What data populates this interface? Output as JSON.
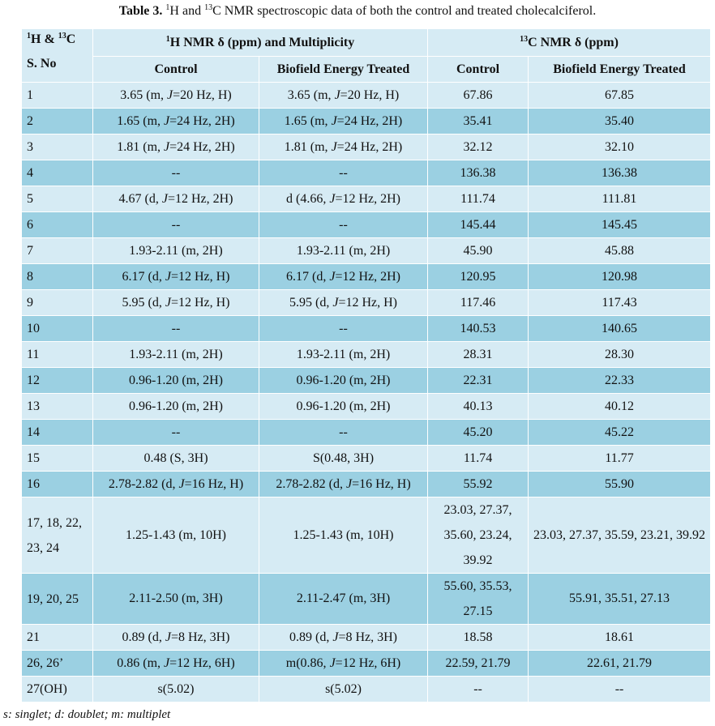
{
  "caption": {
    "label": "Table 3.",
    "text_prefix": "",
    "sup1": "1",
    "mid": "H and ",
    "sup2": "13",
    "rest": "C NMR spectroscopic data of both the control and treated cholecalciferol."
  },
  "header": {
    "corner_sup1": "1",
    "corner_h": "H & ",
    "corner_sup2": "13",
    "corner_c": "C",
    "corner_sno": "S. No",
    "h_group_sup": "1",
    "h_group": "H NMR δ (ppm) and Multiplicity",
    "c_group_sup": "13",
    "c_group": "C NMR δ (ppm)",
    "sub": [
      "Control",
      "Biofield Energy Treated",
      "Control",
      "Biofield Energy Treated"
    ]
  },
  "rows": [
    {
      "no": "1",
      "h_ctrl": "3.65 (m, J=20 Hz, H)",
      "h_trt": "3.65 (m, J=20 Hz, H)",
      "c_ctrl": "67.86",
      "c_trt": "67.85"
    },
    {
      "no": "2",
      "h_ctrl": "1.65 (m, J=24 Hz, 2H)",
      "h_trt": "1.65 (m, J=24 Hz, 2H)",
      "c_ctrl": "35.41",
      "c_trt": "35.40"
    },
    {
      "no": "3",
      "h_ctrl": "1.81 (m, J=24 Hz, 2H)",
      "h_trt": "1.81 (m, J=24 Hz, 2H)",
      "c_ctrl": "32.12",
      "c_trt": "32.10"
    },
    {
      "no": "4",
      "h_ctrl": "--",
      "h_trt": "--",
      "c_ctrl": "136.38",
      "c_trt": "136.38"
    },
    {
      "no": "5",
      "h_ctrl": "4.67 (d, J=12 Hz, 2H)",
      "h_trt": "d (4.66, J=12 Hz, 2H)",
      "c_ctrl": "111.74",
      "c_trt": "111.81"
    },
    {
      "no": "6",
      "h_ctrl": "--",
      "h_trt": "--",
      "c_ctrl": "145.44",
      "c_trt": "145.45"
    },
    {
      "no": "7",
      "h_ctrl": "1.93-2.11 (m, 2H)",
      "h_trt": "1.93-2.11 (m, 2H)",
      "c_ctrl": "45.90",
      "c_trt": "45.88"
    },
    {
      "no": "8",
      "h_ctrl": "6.17 (d, J=12 Hz, H)",
      "h_trt": "6.17 (d, J=12 Hz, 2H)",
      "c_ctrl": "120.95",
      "c_trt": "120.98"
    },
    {
      "no": "9",
      "h_ctrl": "5.95 (d, J=12 Hz, H)",
      "h_trt": "5.95 (d, J=12 Hz, H)",
      "c_ctrl": "117.46",
      "c_trt": "117.43"
    },
    {
      "no": "10",
      "h_ctrl": "--",
      "h_trt": "--",
      "c_ctrl": "140.53",
      "c_trt": "140.65"
    },
    {
      "no": "11",
      "h_ctrl": "1.93-2.11 (m, 2H)",
      "h_trt": "1.93-2.11 (m, 2H)",
      "c_ctrl": "28.31",
      "c_trt": "28.30"
    },
    {
      "no": "12",
      "h_ctrl": "0.96-1.20 (m, 2H)",
      "h_trt": "0.96-1.20 (m, 2H)",
      "c_ctrl": "22.31",
      "c_trt": "22.33"
    },
    {
      "no": "13",
      "h_ctrl": "0.96-1.20 (m, 2H)",
      "h_trt": "0.96-1.20 (m, 2H)",
      "c_ctrl": "40.13",
      "c_trt": "40.12"
    },
    {
      "no": "14",
      "h_ctrl": "--",
      "h_trt": "--",
      "c_ctrl": "45.20",
      "c_trt": "45.22"
    },
    {
      "no": "15",
      "h_ctrl": "0.48 (S, 3H)",
      "h_trt": "S(0.48, 3H)",
      "c_ctrl": "11.74",
      "c_trt": "11.77"
    },
    {
      "no": "16",
      "h_ctrl": "2.78-2.82 (d, J=16 Hz, H)",
      "h_trt": "2.78-2.82 (d, J=16 Hz, H)",
      "c_ctrl": "55.92",
      "c_trt": "55.90"
    },
    {
      "no": "17, 18, 22, 23, 24",
      "h_ctrl": "1.25-1.43 (m, 10H)",
      "h_trt": "1.25-1.43 (m, 10H)",
      "c_ctrl": "23.03, 27.37, 35.60, 23.24, 39.92",
      "c_trt": "23.03, 27.37, 35.59, 23.21, 39.92"
    },
    {
      "no": "19, 20, 25",
      "h_ctrl": "2.11-2.50 (m, 3H)",
      "h_trt": "2.11-2.47 (m, 3H)",
      "c_ctrl": "55.60, 35.53, 27.15",
      "c_trt": "55.91, 35.51, 27.13"
    },
    {
      "no": "21",
      "h_ctrl": "0.89 (d, J=8 Hz, 3H)",
      "h_trt": "0.89 (d, J=8 Hz, 3H)",
      "c_ctrl": "18.58",
      "c_trt": "18.61"
    },
    {
      "no": "26, 26’",
      "h_ctrl": "0.86 (m, J=12 Hz, 6H)",
      "h_trt": "m(0.86, J=12 Hz, 6H)",
      "c_ctrl": "22.59, 21.79",
      "c_trt": "22.61, 21.79"
    },
    {
      "no": "27(OH)",
      "h_ctrl": "s(5.02)",
      "h_trt": "s(5.02)",
      "c_ctrl": "--",
      "c_trt": "--"
    }
  ],
  "footnote": "s: singlet; d: doublet; m: multiplet",
  "colors": {
    "light": "#d6ebf4",
    "dark": "#9bd0e2"
  }
}
